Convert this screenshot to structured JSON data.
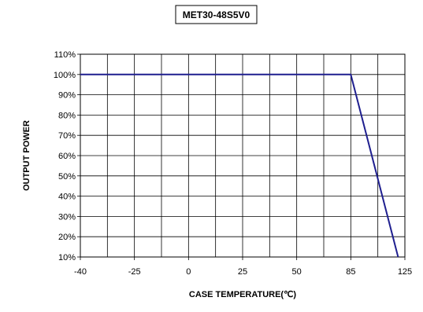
{
  "chart_data": {
    "type": "line",
    "title": "MET30-48S5V0",
    "xlabel": "CASE TEMPERATURE(℃)",
    "ylabel": "OUTPUT POWER",
    "xlim": [
      -40,
      125
    ],
    "ylim": [
      10,
      110
    ],
    "x_ticks": [
      -40,
      -25,
      0,
      25,
      50,
      85,
      125
    ],
    "x_tick_labels": [
      "-40",
      "-25",
      "0",
      "25",
      "50",
      "85",
      "125"
    ],
    "y_ticks": [
      10,
      20,
      30,
      40,
      50,
      60,
      70,
      80,
      90,
      100,
      110
    ],
    "y_tick_labels": [
      "10%",
      "20%",
      "30%",
      "40%",
      "50%",
      "60%",
      "70%",
      "80%",
      "90%",
      "100%",
      "110%"
    ],
    "grid": true,
    "legend": "none",
    "series": [
      {
        "x": [
          -40,
          85,
          120
        ],
        "y": [
          100,
          100,
          10
        ]
      }
    ],
    "colors": {
      "series": "#1f1f8f",
      "grid": "#000000",
      "plot_background": "#ffffff"
    }
  }
}
